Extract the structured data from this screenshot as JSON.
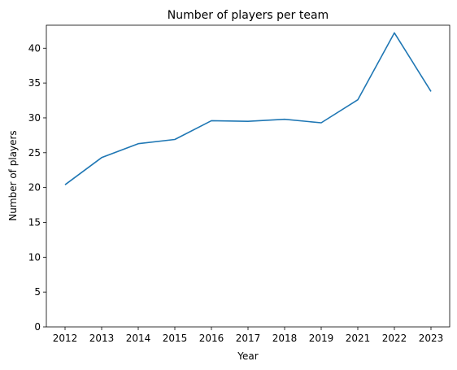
{
  "chart_data": {
    "type": "line",
    "title": "Number of players per team",
    "xlabel": "Year",
    "ylabel": "Number of players",
    "categories": [
      "2012",
      "2013",
      "2014",
      "2015",
      "2016",
      "2017",
      "2018",
      "2019",
      "2021",
      "2022",
      "2023"
    ],
    "series": [
      {
        "values": [
          20.4,
          24.3,
          26.3,
          26.9,
          29.6,
          29.5,
          29.8,
          29.3,
          32.6,
          42.2,
          33.8
        ],
        "color": "#1f77b4"
      }
    ],
    "ylim": [
      0,
      43.3
    ],
    "yticks": [
      0,
      5,
      10,
      15,
      20,
      25,
      30,
      35,
      40
    ],
    "grid": false,
    "legend": "none"
  }
}
